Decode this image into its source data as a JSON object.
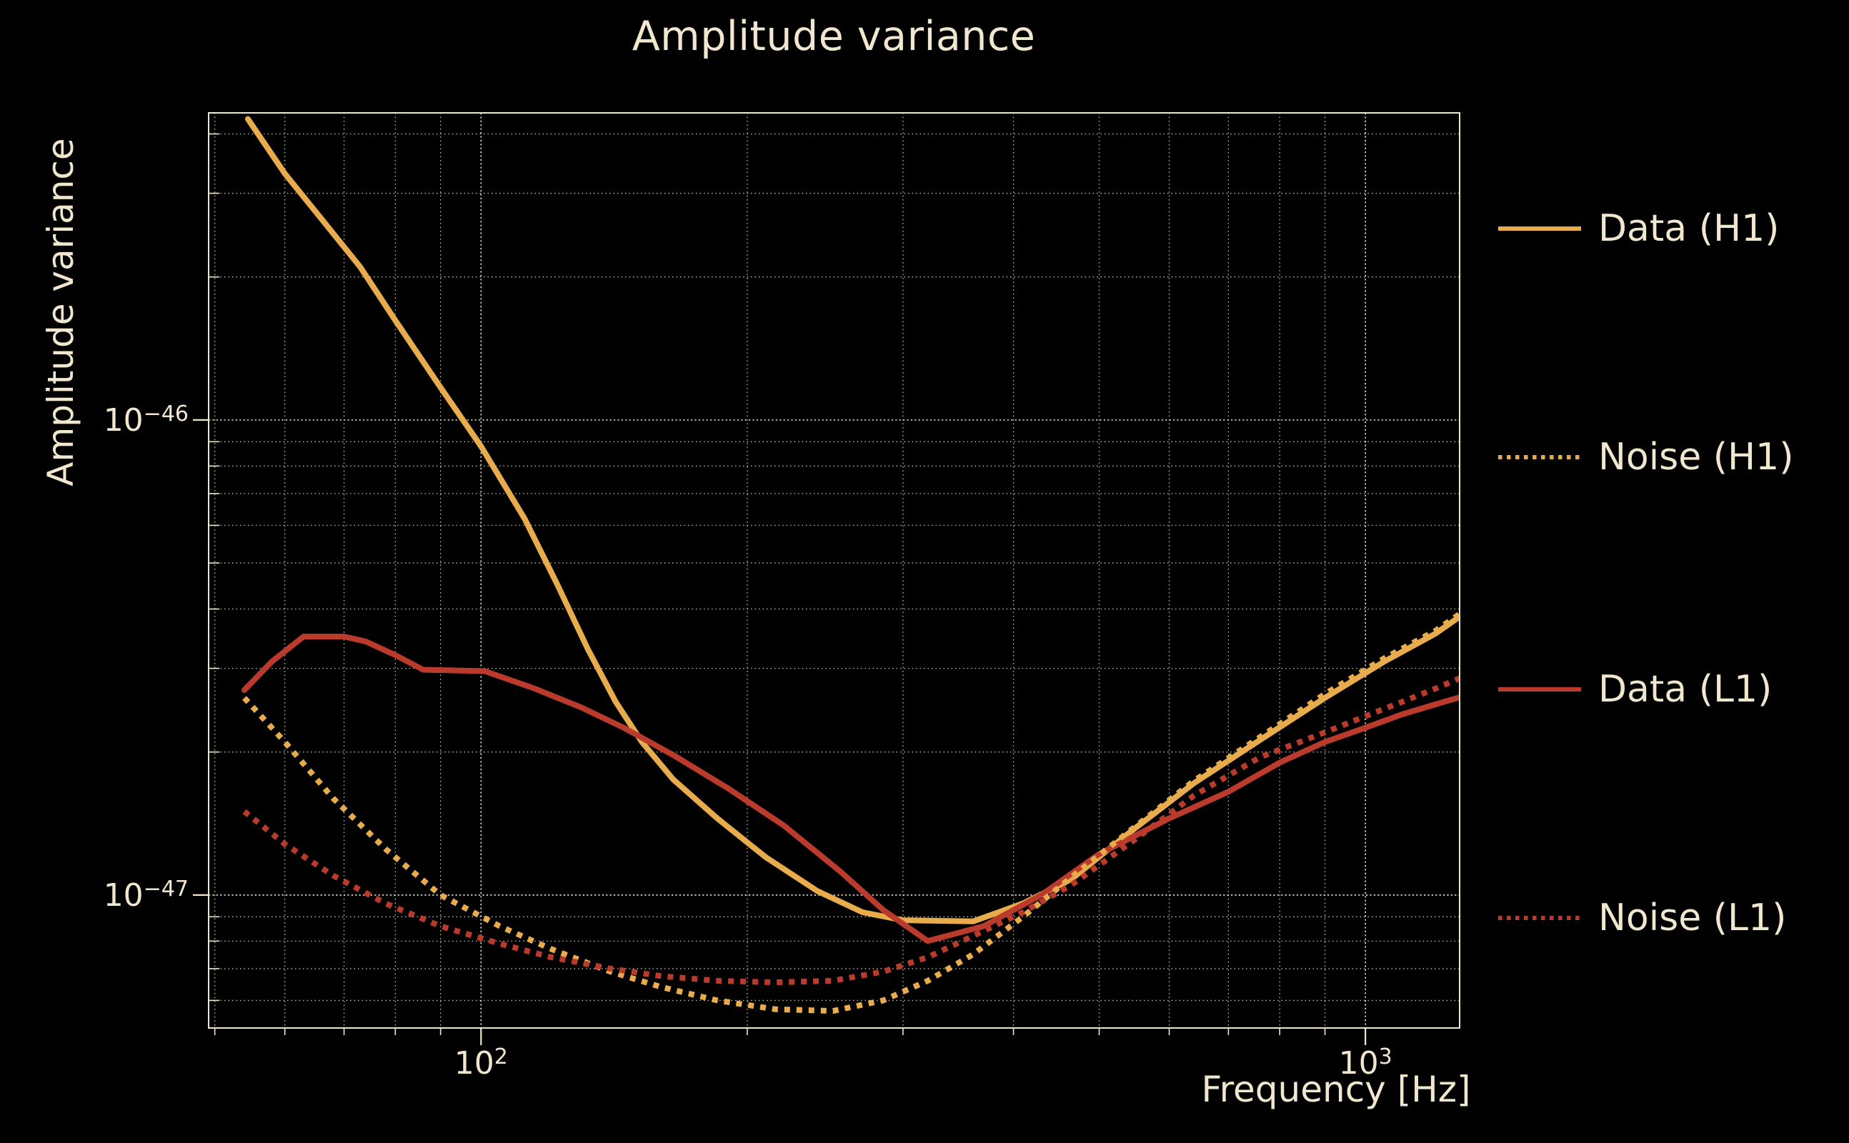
{
  "title": "Amplitude variance",
  "axes": {
    "x": {
      "label": "Frequency [Hz]",
      "scale": "log",
      "ticks": [
        {
          "base": "10",
          "exp": "2",
          "value": 100
        },
        {
          "base": "10",
          "exp": "3",
          "value": 1000
        }
      ]
    },
    "y": {
      "label": "Amplitude variance",
      "scale": "log",
      "ticks": [
        {
          "base": "10",
          "exp": "−46",
          "value": 1e-46
        },
        {
          "base": "10",
          "exp": "−47",
          "value": 1e-47
        }
      ]
    }
  },
  "colors": {
    "background": "#000000",
    "text": "#F0E7CE",
    "grid": "#EFE6CB",
    "h1": "#E8AC4C",
    "l1": "#BA3B2B"
  },
  "chart_data": {
    "type": "line",
    "title": "Amplitude variance",
    "xlabel": "Frequency [Hz]",
    "ylabel": "Amplitude variance",
    "xscale": "log",
    "yscale": "log",
    "xlim": [
      49.2,
      1278
    ],
    "ylim": [
      5.25e-48,
      4.43e-46
    ],
    "grid": true,
    "legend_position": "right",
    "series": [
      {
        "name": "Data (H1)",
        "color": "#E8AC4C",
        "style": "solid",
        "points": [
          [
            54.5,
            4.3e-46
          ],
          [
            60,
            3.3e-46
          ],
          [
            66,
            2.65e-46
          ],
          [
            73,
            2.1e-46
          ],
          [
            80,
            1.62e-46
          ],
          [
            90,
            1.17e-46
          ],
          [
            100,
            8.8e-47
          ],
          [
            112,
            6.2e-47
          ],
          [
            122,
            4.5e-47
          ],
          [
            132,
            3.3e-47
          ],
          [
            142,
            2.55e-47
          ],
          [
            152,
            2.1e-47
          ],
          [
            165,
            1.75e-47
          ],
          [
            185,
            1.45e-47
          ],
          [
            210,
            1.2e-47
          ],
          [
            240,
            1.02e-47
          ],
          [
            270,
            9.2e-48
          ],
          [
            300,
            8.85e-48
          ],
          [
            360,
            8.8e-48
          ],
          [
            410,
            9.6e-48
          ],
          [
            465,
            1.08e-47
          ],
          [
            540,
            1.35e-47
          ],
          [
            640,
            1.72e-47
          ],
          [
            760,
            2.12e-47
          ],
          [
            900,
            2.6e-47
          ],
          [
            1050,
            3.1e-47
          ],
          [
            1200,
            3.55e-47
          ],
          [
            1290,
            3.9e-47
          ]
        ]
      },
      {
        "name": "Noise (H1)",
        "color": "#E8AC4C",
        "style": "dotted",
        "points": [
          [
            54,
            2.6e-47
          ],
          [
            60,
            2.1e-47
          ],
          [
            68,
            1.6e-47
          ],
          [
            78,
            1.25e-47
          ],
          [
            90,
            1e-47
          ],
          [
            105,
            8.6e-48
          ],
          [
            120,
            7.7e-48
          ],
          [
            140,
            6.9e-48
          ],
          [
            160,
            6.4e-48
          ],
          [
            185,
            6e-48
          ],
          [
            215,
            5.75e-48
          ],
          [
            250,
            5.7e-48
          ],
          [
            285,
            6e-48
          ],
          [
            320,
            6.6e-48
          ],
          [
            360,
            7.5e-48
          ],
          [
            410,
            9e-48
          ],
          [
            465,
            1.09e-47
          ],
          [
            540,
            1.36e-47
          ],
          [
            640,
            1.74e-47
          ],
          [
            760,
            2.15e-47
          ],
          [
            900,
            2.65e-47
          ],
          [
            1050,
            3.15e-47
          ],
          [
            1200,
            3.6e-47
          ],
          [
            1290,
            3.95e-47
          ]
        ]
      },
      {
        "name": "Data (L1)",
        "color": "#BA3B2B",
        "style": "solid",
        "points": [
          [
            54,
            2.7e-47
          ],
          [
            58,
            3.1e-47
          ],
          [
            63,
            3.5e-47
          ],
          [
            70,
            3.5e-47
          ],
          [
            74,
            3.42e-47
          ],
          [
            80,
            3.2e-47
          ],
          [
            86,
            2.98e-47
          ],
          [
            101,
            2.96e-47
          ],
          [
            115,
            2.72e-47
          ],
          [
            130,
            2.48e-47
          ],
          [
            145,
            2.25e-47
          ],
          [
            165,
            1.97e-47
          ],
          [
            190,
            1.68e-47
          ],
          [
            220,
            1.4e-47
          ],
          [
            255,
            1.12e-47
          ],
          [
            285,
            9.3e-48
          ],
          [
            320,
            8e-48
          ],
          [
            370,
            8.6e-48
          ],
          [
            430,
            1e-47
          ],
          [
            500,
            1.22e-47
          ],
          [
            600,
            1.45e-47
          ],
          [
            700,
            1.65e-47
          ],
          [
            800,
            1.9e-47
          ],
          [
            900,
            2.1e-47
          ],
          [
            1000,
            2.25e-47
          ],
          [
            1100,
            2.4e-47
          ],
          [
            1200,
            2.52e-47
          ],
          [
            1290,
            2.62e-47
          ]
        ]
      },
      {
        "name": "Noise (L1)",
        "color": "#BA3B2B",
        "style": "dotted",
        "points": [
          [
            54,
            1.5e-47
          ],
          [
            60,
            1.28e-47
          ],
          [
            68,
            1.1e-47
          ],
          [
            78,
            9.6e-48
          ],
          [
            90,
            8.6e-48
          ],
          [
            105,
            7.9e-48
          ],
          [
            120,
            7.4e-48
          ],
          [
            140,
            7e-48
          ],
          [
            160,
            6.75e-48
          ],
          [
            185,
            6.6e-48
          ],
          [
            215,
            6.55e-48
          ],
          [
            250,
            6.6e-48
          ],
          [
            285,
            6.9e-48
          ],
          [
            320,
            7.4e-48
          ],
          [
            360,
            8.2e-48
          ],
          [
            410,
            9.2e-48
          ],
          [
            465,
            1.05e-47
          ],
          [
            540,
            1.28e-47
          ],
          [
            640,
            1.62e-47
          ],
          [
            760,
            1.95e-47
          ],
          [
            900,
            2.2e-47
          ],
          [
            1000,
            2.38e-47
          ],
          [
            1100,
            2.55e-47
          ],
          [
            1200,
            2.72e-47
          ],
          [
            1290,
            2.88e-47
          ]
        ]
      }
    ]
  },
  "legend": {
    "items": [
      {
        "label": "Data (H1)"
      },
      {
        "label": "Noise (H1)"
      },
      {
        "label": "Data (L1)"
      },
      {
        "label": "Noise (L1)"
      }
    ]
  }
}
